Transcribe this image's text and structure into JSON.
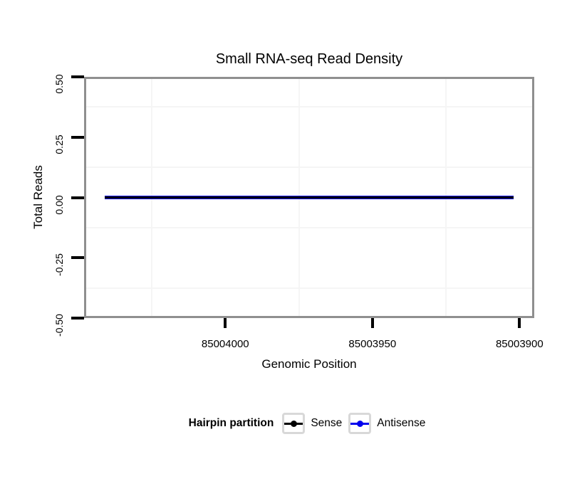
{
  "chart_data": {
    "type": "line",
    "title": "Small RNA-seq Read Density",
    "xlabel": "Genomic Position",
    "ylabel": "Total Reads",
    "x_axis": {
      "reversed": true,
      "range": [
        85003895,
        85004048
      ],
      "ticks": [
        85004000,
        85003950,
        85003900
      ],
      "tick_labels": [
        "85004000",
        "85003950",
        "85003900"
      ],
      "minor_gridlines": [
        85004025,
        85003975,
        85003925
      ]
    },
    "y_axis": {
      "range": [
        -0.5,
        0.5
      ],
      "ticks": [
        0.5,
        0.25,
        0,
        -0.25,
        -0.5
      ],
      "tick_labels": [
        "0.50",
        "0.25",
        "0.00",
        "-0.25",
        "-0.50"
      ],
      "minor_gridlines": [
        0.375,
        0.125,
        -0.125,
        -0.375
      ]
    },
    "series": [
      {
        "name": "Sense",
        "color": "#000000",
        "y": 0,
        "x_start": 85004041,
        "x_end": 85003902
      },
      {
        "name": "Antisense",
        "color": "#0000ee",
        "y": 0,
        "x_start": 85004041,
        "x_end": 85003902
      }
    ],
    "legend": {
      "title": "Hairpin partition",
      "position": "bottom",
      "entries": [
        {
          "label": "Sense",
          "color": "#000000"
        },
        {
          "label": "Antisense",
          "color": "#0000ee"
        }
      ]
    },
    "grid": "minor-only",
    "style": {
      "panel_border_color": "#8f8f8f",
      "minor_grid_color": "#f5f5f5",
      "tick_color": "#000000",
      "background": "#ffffff"
    }
  }
}
